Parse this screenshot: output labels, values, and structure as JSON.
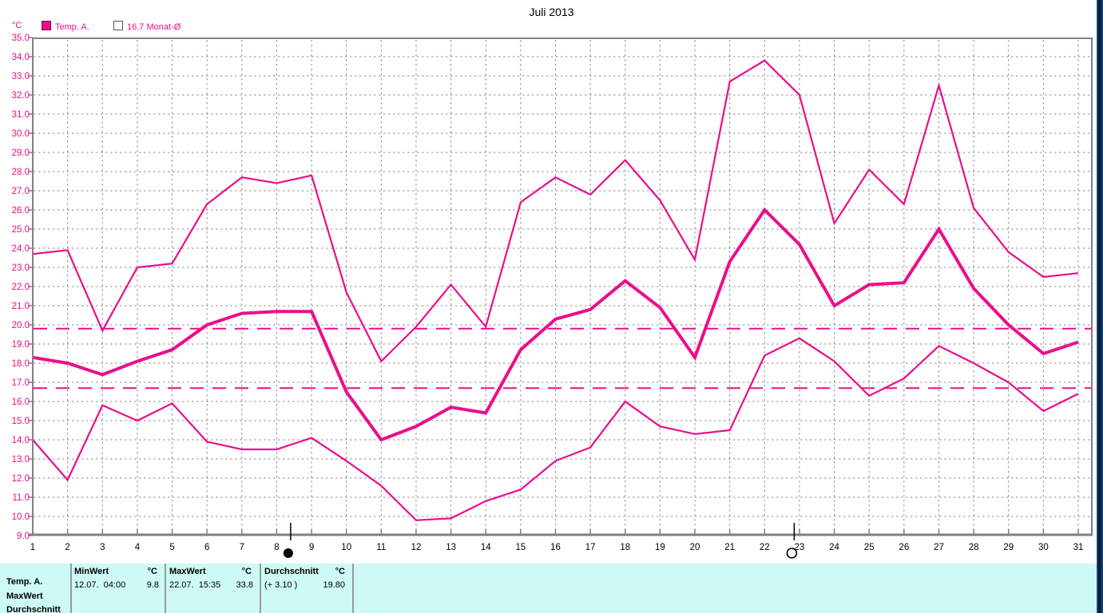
{
  "title": "Juli 2013",
  "legend": {
    "unit": "°C",
    "items": [
      {
        "label": "Temp. A.",
        "swatch": "filled"
      },
      {
        "label": "16.7 Monat-Ø",
        "swatch": "open"
      }
    ]
  },
  "colors": {
    "series": "#EC0D8C",
    "grid": "#8f8f8f",
    "axis": "#808080",
    "table_bg": "#CDFAF5"
  },
  "chart_data": {
    "type": "line",
    "title": "Juli 2013",
    "ylabel": "°C",
    "ylim": [
      9,
      35
    ],
    "ytick_step": 1,
    "days": [
      1,
      2,
      3,
      4,
      5,
      6,
      7,
      8,
      9,
      10,
      11,
      12,
      13,
      14,
      15,
      16,
      17,
      18,
      19,
      20,
      21,
      22,
      23,
      24,
      25,
      26,
      27,
      28,
      29,
      30,
      31
    ],
    "series": [
      {
        "name": "max",
        "values": [
          23.7,
          23.9,
          19.7,
          23.0,
          23.2,
          26.3,
          27.7,
          27.4,
          27.8,
          21.7,
          18.1,
          19.9,
          22.1,
          19.9,
          26.4,
          27.7,
          26.8,
          28.6,
          26.5,
          23.4,
          32.7,
          33.8,
          32.0,
          25.3,
          28.1,
          26.3,
          32.5,
          26.1,
          23.8,
          22.5,
          22.7
        ]
      },
      {
        "name": "avg",
        "values": [
          18.3,
          18.0,
          17.4,
          18.1,
          18.7,
          20.0,
          20.6,
          20.7,
          20.7,
          16.5,
          14.0,
          14.7,
          15.7,
          15.4,
          18.7,
          20.3,
          20.8,
          22.3,
          20.9,
          18.3,
          23.3,
          26.0,
          24.2,
          21.0,
          22.1,
          22.2,
          25.0,
          21.9,
          20.0,
          18.5,
          19.1
        ]
      },
      {
        "name": "min",
        "values": [
          14.0,
          11.9,
          15.8,
          15.0,
          15.9,
          13.9,
          13.5,
          13.5,
          14.1,
          12.9,
          11.6,
          9.8,
          9.9,
          10.8,
          11.4,
          12.9,
          13.6,
          16.0,
          14.7,
          14.3,
          14.5,
          18.4,
          19.3,
          18.1,
          16.3,
          17.2,
          18.9,
          18.0,
          17.0,
          15.5,
          16.4
        ]
      }
    ],
    "reference_lines": [
      {
        "label": "Durchschnitt",
        "value": 19.8
      },
      {
        "label": "16.7 Monat-Ø",
        "value": 16.7
      }
    ],
    "moon_markers": [
      {
        "day": 8.4,
        "phase": "new"
      },
      {
        "day": 22.85,
        "phase": "full"
      }
    ],
    "grid": true,
    "legend_position": "top-left"
  },
  "table": {
    "row_labels": [
      "Temp. A.",
      "MaxWert",
      "Durchschnitt"
    ],
    "columns": [
      {
        "header": "MinWert",
        "unit": "°C",
        "value": "12.07.  04:00",
        "number": "9.8"
      },
      {
        "header": "MaxWert",
        "unit": "°C",
        "value": "22.07.  15:35",
        "number": "33.8"
      },
      {
        "header": "Durchschnitt",
        "unit": "°C",
        "value": "(+ 3.10 )",
        "number": "19.80"
      }
    ]
  }
}
